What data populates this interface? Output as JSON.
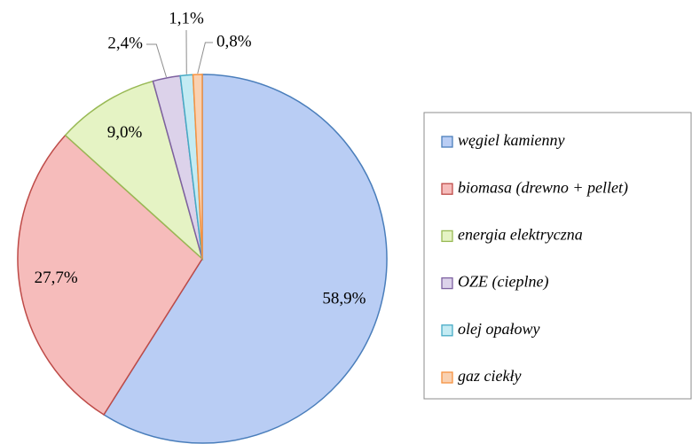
{
  "chart_data": {
    "type": "pie",
    "categories": [
      "węgiel kamienny",
      "biomasa (drewno + pellet)",
      "energia elektryczna",
      "OZE (cieplne)",
      "olej opałowy",
      "gaz ciekły"
    ],
    "values": [
      58.9,
      27.7,
      9.0,
      2.4,
      1.1,
      0.8
    ],
    "value_labels": [
      "58,9%",
      "27,7%",
      "9,0%",
      "2,4%",
      "1,1%",
      "0,8%"
    ],
    "colors": [
      "#b9cdf4",
      "#f6bcbb",
      "#e5f3c4",
      "#dcd2ea",
      "#c4ebf3",
      "#f9d1b1"
    ],
    "stroke_colors": [
      "#4a7ebb",
      "#be4b48",
      "#98b954",
      "#7d60a0",
      "#46aac5",
      "#f69240"
    ],
    "legend": "right"
  }
}
